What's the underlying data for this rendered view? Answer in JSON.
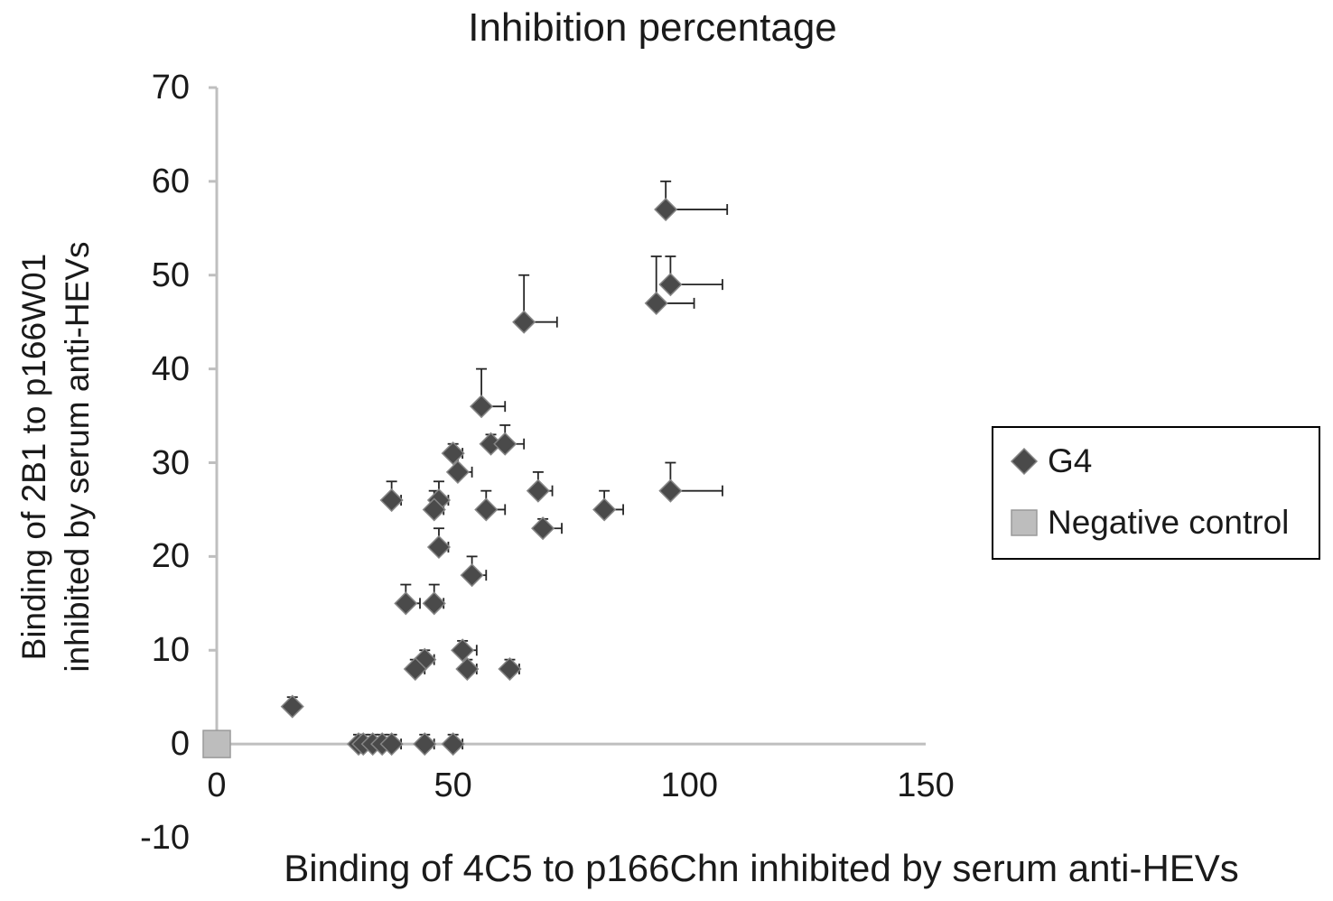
{
  "colors": {
    "axis": "#bfbfbf",
    "error": "#262626",
    "text": "#1a1a1a"
  },
  "chart_data": {
    "type": "scatter",
    "title": "Inhibition percentage",
    "xlabel": "Binding of 4C5 to p166Chn inhibited by serum anti-HEVs",
    "ylabel": "Binding of 2B1 to p166W01 inhibited by serum anti-HEVs",
    "ylabel_lines": [
      "Binding of 2B1 to p166W01",
      "inhibited by serum anti-HEVs"
    ],
    "xlim": [
      0,
      150
    ],
    "ylim": [
      -10,
      70
    ],
    "x_ticks": [
      0,
      50,
      100,
      150
    ],
    "y_ticks": [
      -10,
      0,
      10,
      20,
      30,
      40,
      50,
      60,
      70
    ],
    "grid": false,
    "legend_position": "right",
    "error_bars": "positive x and y",
    "series": [
      {
        "name": "G4",
        "marker": "diamond",
        "color": "#4a4a4a",
        "stroke": "#858585",
        "points_format": [
          "x",
          "y",
          "xerr",
          "yerr"
        ],
        "points": [
          [
            95,
            57,
            13,
            3
          ],
          [
            96,
            49,
            11,
            3
          ],
          [
            93,
            47,
            8,
            5
          ],
          [
            65,
            45,
            7,
            5
          ],
          [
            56,
            36,
            5,
            4
          ],
          [
            58,
            32,
            2,
            1
          ],
          [
            61,
            32,
            4,
            2
          ],
          [
            50,
            31,
            2,
            1
          ],
          [
            51,
            29,
            3,
            2
          ],
          [
            37,
            26,
            2,
            2
          ],
          [
            47,
            26,
            2,
            2
          ],
          [
            46,
            25,
            2,
            2
          ],
          [
            57,
            25,
            4,
            2
          ],
          [
            68,
            27,
            3,
            2
          ],
          [
            96,
            27,
            11,
            3
          ],
          [
            82,
            25,
            4,
            2
          ],
          [
            69,
            23,
            4,
            1
          ],
          [
            47,
            21,
            2,
            2
          ],
          [
            54,
            18,
            3,
            2
          ],
          [
            40,
            15,
            3,
            2
          ],
          [
            46,
            15,
            2,
            2
          ],
          [
            52,
            10,
            3,
            1
          ],
          [
            44,
            9,
            2,
            1
          ],
          [
            42,
            8,
            2,
            1
          ],
          [
            53,
            8,
            2,
            1
          ],
          [
            62,
            8,
            2,
            1
          ],
          [
            16,
            4,
            1,
            1
          ],
          [
            30,
            0,
            1,
            1
          ],
          [
            31,
            0,
            1,
            1
          ],
          [
            33,
            0,
            2,
            1
          ],
          [
            35,
            0,
            1,
            1
          ],
          [
            37,
            0,
            2,
            1
          ],
          [
            44,
            0,
            2,
            1
          ],
          [
            50,
            0,
            2,
            1
          ]
        ]
      },
      {
        "name": "Negative control",
        "marker": "square",
        "color": "#bdbdbd",
        "stroke": "#9a9a9a",
        "points_format": [
          "x",
          "y",
          "xerr",
          "yerr"
        ],
        "points": [
          [
            0,
            0,
            2,
            1
          ]
        ]
      }
    ]
  }
}
